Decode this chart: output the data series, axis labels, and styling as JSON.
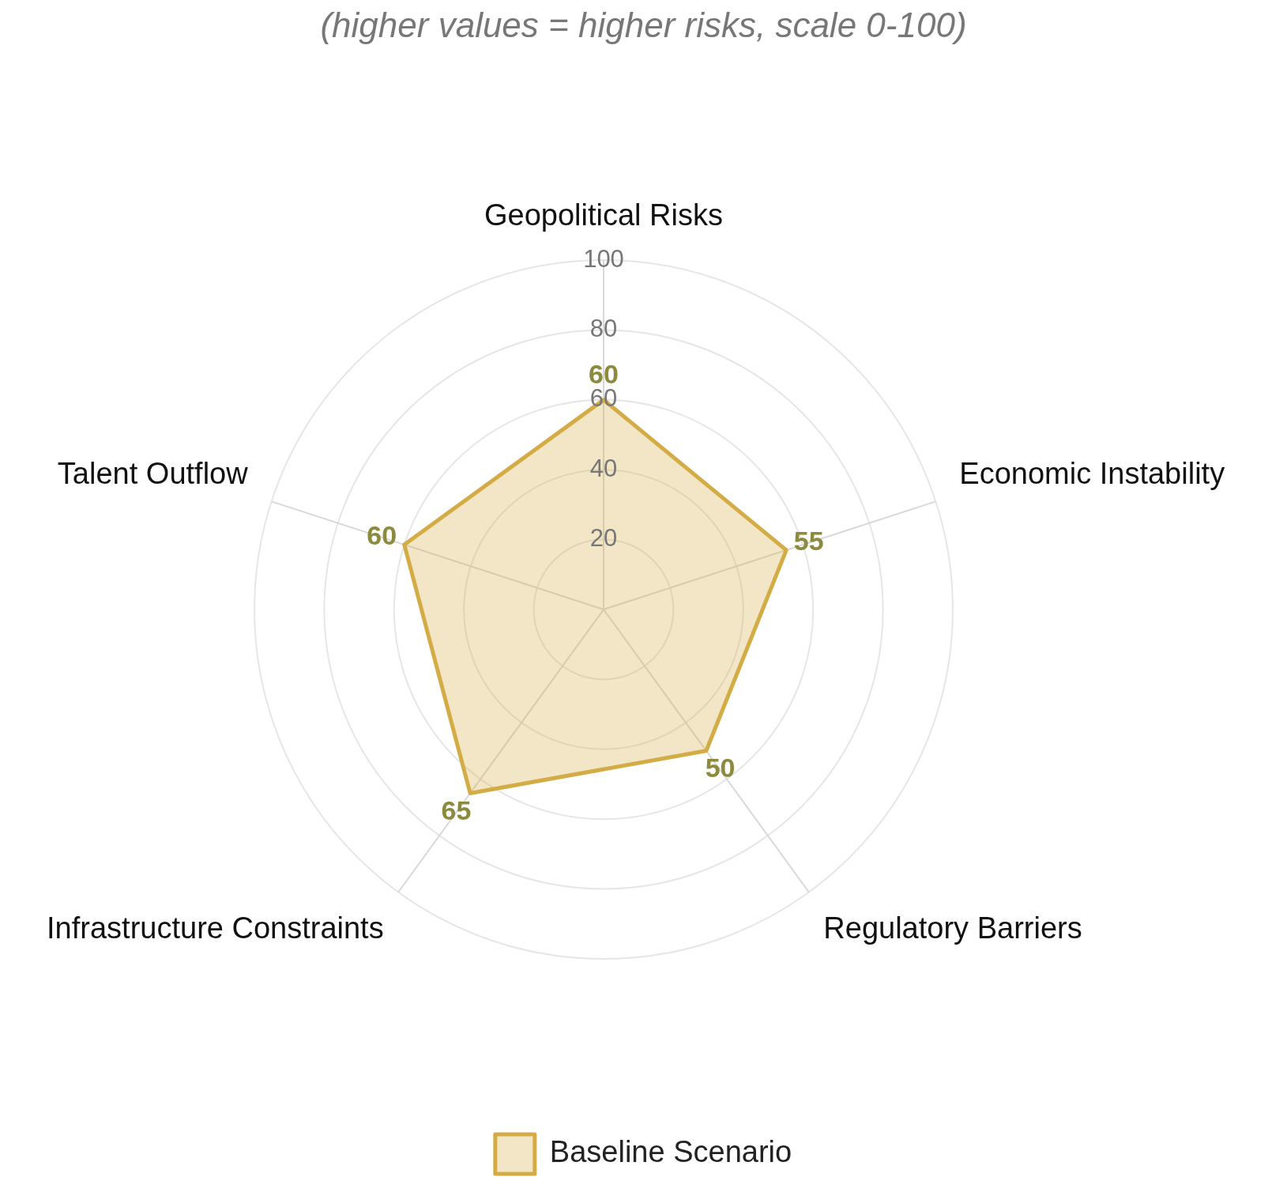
{
  "chart_data": {
    "type": "radar",
    "subtitle": "(higher values = higher risks, scale 0-100)",
    "categories": [
      "Geopolitical Risks",
      "Economic Instability",
      "Regulatory Barriers",
      "Infrastructure Constraints",
      "Talent Outflow"
    ],
    "series": [
      {
        "name": "Baseline Scenario",
        "color": "#d4ac45",
        "values": [
          60,
          55,
          50,
          65,
          60
        ]
      }
    ],
    "ylim": [
      0,
      100
    ],
    "yticks": [
      20,
      40,
      60,
      80,
      100
    ],
    "grid": true,
    "legend": "bottom",
    "marker": "none",
    "data_labels": true
  }
}
